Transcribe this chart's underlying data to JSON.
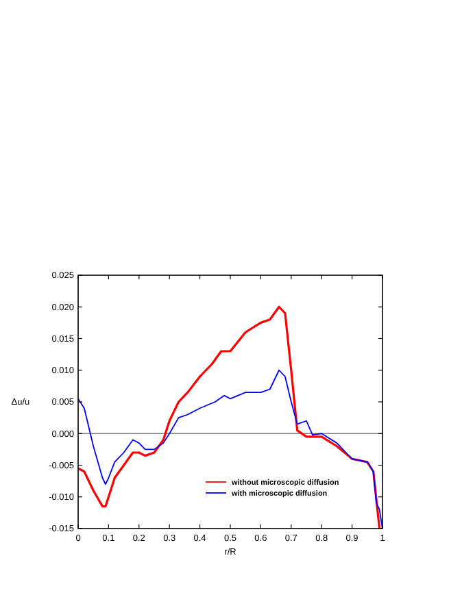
{
  "chart_data": {
    "type": "line",
    "xlabel": "r/R",
    "ylabel": "Δu/u",
    "xlim": [
      0,
      1
    ],
    "ylim": [
      -0.015,
      0.025
    ],
    "xticks": [
      0,
      0.1,
      0.2,
      0.3,
      0.4,
      0.5,
      0.6,
      0.7,
      0.8,
      0.9,
      1
    ],
    "yticks": [
      {
        "value": -0.015,
        "label": "-0.015"
      },
      {
        "value": -0.01,
        "label": "-0.010"
      },
      {
        "value": -0.005,
        "label": "-0.005"
      },
      {
        "value": 0,
        "label": "0.000"
      },
      {
        "value": 0.005,
        "label": "0.005"
      },
      {
        "value": 0.01,
        "label": "0.010"
      },
      {
        "value": 0.015,
        "label": "0.015"
      },
      {
        "value": 0.02,
        "label": "0.020"
      },
      {
        "value": 0.025,
        "label": "0.025"
      }
    ],
    "x": [
      0,
      0.02,
      0.05,
      0.08,
      0.09,
      0.1,
      0.12,
      0.15,
      0.18,
      0.2,
      0.22,
      0.25,
      0.28,
      0.3,
      0.33,
      0.36,
      0.4,
      0.44,
      0.47,
      0.5,
      0.55,
      0.6,
      0.63,
      0.66,
      0.68,
      0.7,
      0.72,
      0.75,
      0.8,
      0.85,
      0.9,
      0.95,
      0.97,
      0.99
    ],
    "series": [
      {
        "name": "without microscopic diffusion",
        "color": "#ff0000",
        "values": [
          -0.0055,
          -0.006,
          -0.009,
          -0.0115,
          -0.0115,
          -0.01,
          -0.007,
          -0.005,
          -0.003,
          -0.003,
          -0.0035,
          -0.003,
          -0.001,
          0.002,
          0.005,
          0.0065,
          0.009,
          0.011,
          0.013,
          0.013,
          0.016,
          0.0175,
          0.018,
          0.02,
          0.019,
          0.01,
          0.0005,
          -0.0005,
          -0.0005,
          -0.002,
          -0.004,
          -0.0045,
          -0.006,
          -0.015
        ]
      },
      {
        "name": "with microscopic diffusion",
        "color": "#0000ff",
        "x": [
          0,
          0.02,
          0.05,
          0.08,
          0.09,
          0.1,
          0.12,
          0.15,
          0.18,
          0.2,
          0.22,
          0.25,
          0.28,
          0.3,
          0.33,
          0.36,
          0.4,
          0.45,
          0.48,
          0.5,
          0.55,
          0.6,
          0.63,
          0.66,
          0.68,
          0.7,
          0.72,
          0.75,
          0.77,
          0.8,
          0.85,
          0.9,
          0.95,
          0.97,
          0.98,
          0.99,
          1.0
        ],
        "values": [
          0.0055,
          0.004,
          -0.002,
          -0.007,
          -0.008,
          -0.007,
          -0.0045,
          -0.003,
          -0.001,
          -0.0015,
          -0.0025,
          -0.0025,
          -0.0015,
          0,
          0.0025,
          0.003,
          0.004,
          0.005,
          0.006,
          0.0055,
          0.0065,
          0.0065,
          0.007,
          0.01,
          0.009,
          0.005,
          0.0015,
          0.002,
          -0.0002,
          0,
          -0.0015,
          -0.004,
          -0.0045,
          -0.006,
          -0.011,
          -0.012,
          -0.015
        ]
      }
    ],
    "ref_lines": [
      {
        "axis": "y",
        "value": 0,
        "color": "#808080"
      }
    ],
    "legend": "bottom",
    "grid": false
  }
}
